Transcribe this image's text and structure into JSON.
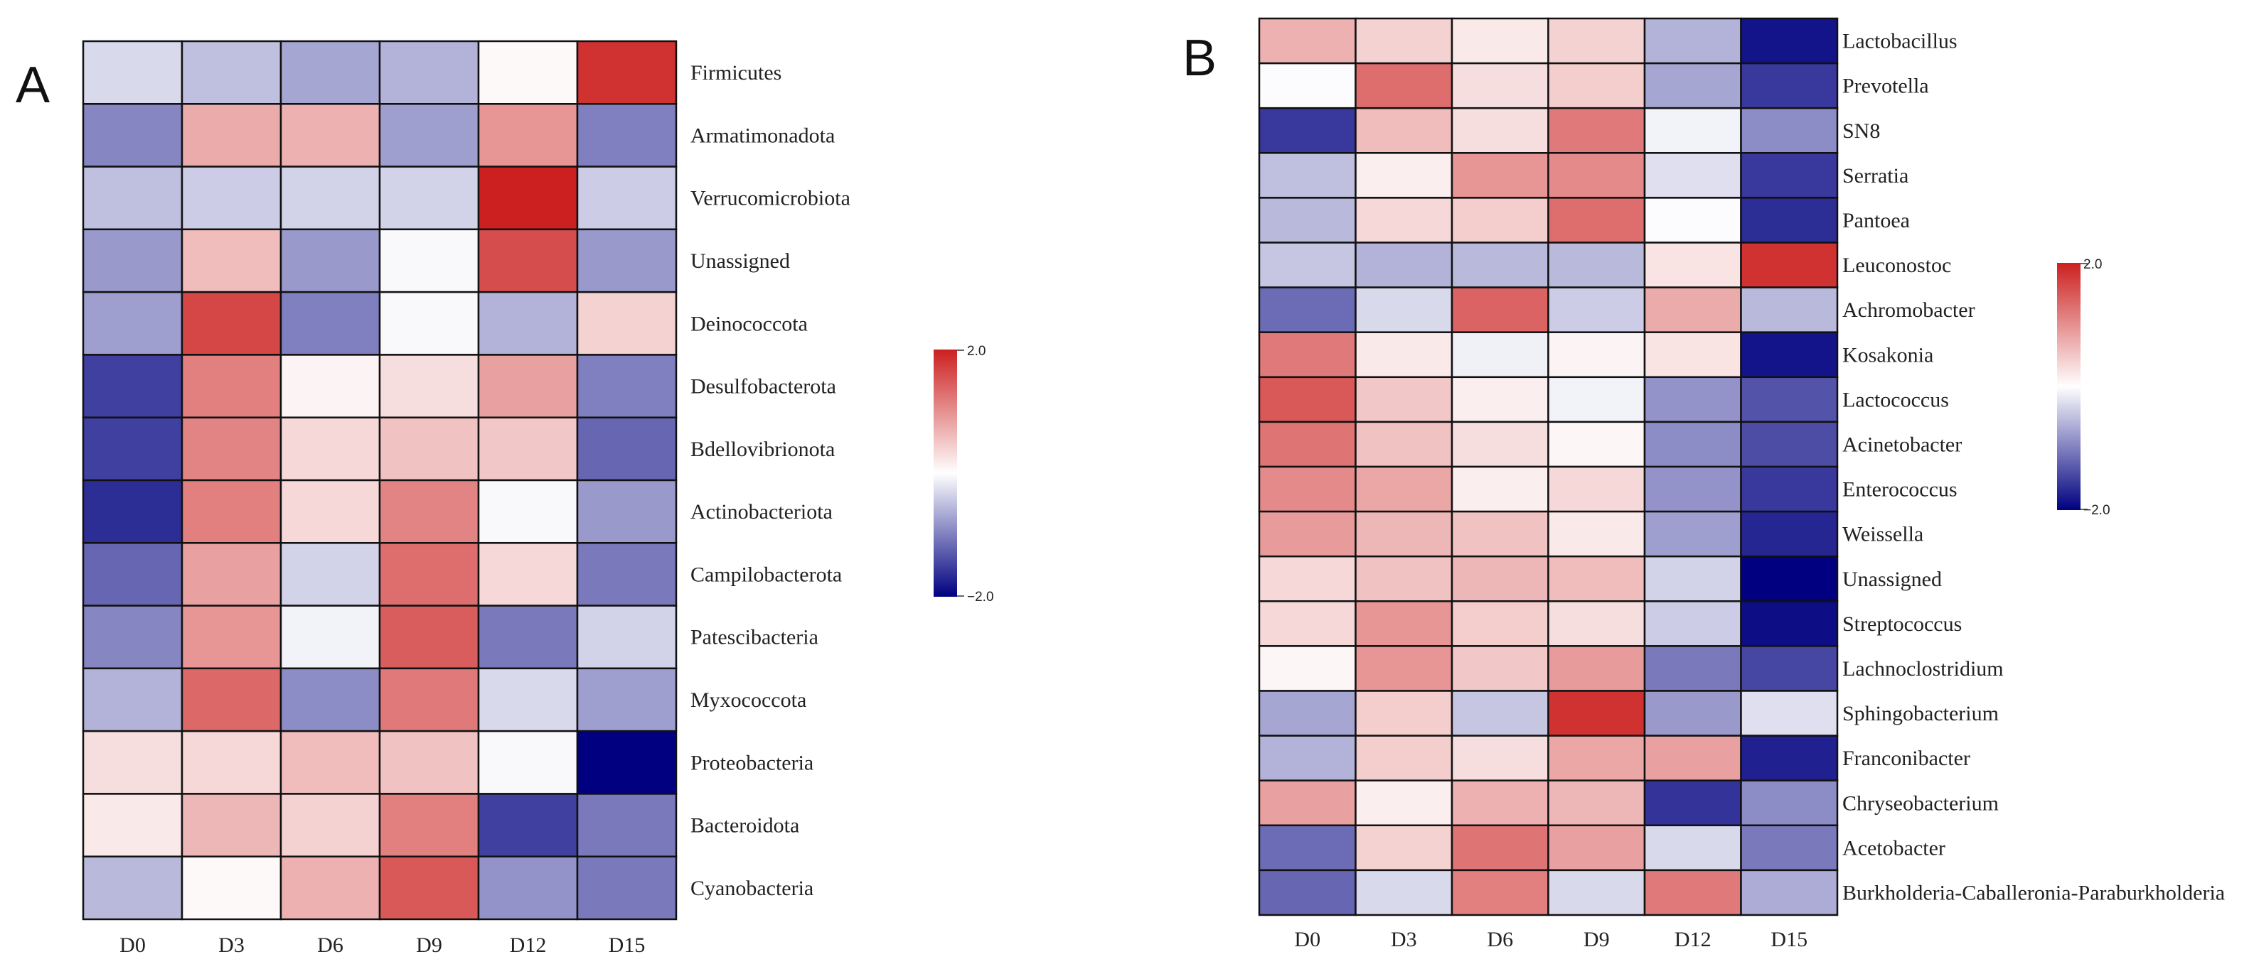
{
  "colors": {
    "low": "#000080",
    "mid": "#ffffff",
    "high": "#cc2020"
  },
  "chart_data": [
    {
      "type": "heatmap",
      "panel_label": "A",
      "columns": [
        "D0",
        "D3",
        "D6",
        "D9",
        "D12",
        "D15"
      ],
      "rows": [
        "Firmicutes",
        "Armatimonadota",
        "Verrucomicrobiota",
        "Unassigned",
        "Deinococcota",
        "Desulfobacterota",
        "Bdellovibrionota",
        "Actinobacteriota",
        "Campilobacterota",
        "Patescibacteria",
        "Myxococcota",
        "Proteobacteria",
        "Bacteroidota",
        "Cyanobacteria"
      ],
      "values": [
        [
          -0.3,
          -0.5,
          -0.7,
          -0.6,
          0.05,
          1.85
        ],
        [
          -0.95,
          0.75,
          0.7,
          -0.75,
          0.95,
          -1.0
        ],
        [
          -0.5,
          -0.4,
          -0.35,
          -0.35,
          2.0,
          -0.4
        ],
        [
          -0.8,
          0.6,
          -0.8,
          -0.05,
          1.6,
          -0.8
        ],
        [
          -0.75,
          1.65,
          -1.0,
          -0.05,
          -0.6,
          0.4
        ],
        [
          -1.5,
          1.15,
          0.1,
          0.3,
          0.85,
          -1.0
        ],
        [
          -1.5,
          1.1,
          0.35,
          0.55,
          0.5,
          -1.2
        ],
        [
          -1.65,
          1.15,
          0.35,
          1.1,
          -0.05,
          -0.8
        ],
        [
          -1.2,
          0.85,
          -0.35,
          1.3,
          0.35,
          -1.05
        ],
        [
          -0.95,
          0.95,
          -0.1,
          1.45,
          -1.05,
          -0.35
        ],
        [
          -0.6,
          1.35,
          -0.9,
          1.2,
          -0.3,
          -0.75
        ],
        [
          0.3,
          0.35,
          0.6,
          0.55,
          -0.05,
          -2.0
        ],
        [
          0.2,
          0.65,
          0.4,
          1.15,
          -1.5,
          -1.05
        ],
        [
          -0.55,
          0.05,
          0.7,
          1.5,
          -0.85,
          -1.05
        ]
      ],
      "legend": {
        "min": -2.0,
        "max": 2.0,
        "min_label": "−2.0",
        "max_label": "2.0"
      }
    },
    {
      "type": "heatmap",
      "panel_label": "B",
      "columns": [
        "D0",
        "D3",
        "D6",
        "D9",
        "D12",
        "D15"
      ],
      "rows": [
        "Lactobacillus",
        "Prevotella",
        "SN8",
        "Serratia",
        "Pantoea",
        "Leuconostoc",
        "Achromobacter",
        "Kosakonia",
        "Lactococcus",
        "Acinetobacter",
        "Enterococcus",
        "Weissella",
        "Unassigned",
        "Streptococcus",
        "Lachnoclostridium",
        "Sphingobacterium",
        "Franconibacter",
        "Chryseobacterium",
        "Acetobacter",
        "Burkholderia-Caballeronia-Paraburkholderia"
      ],
      "values": [
        [
          0.7,
          0.4,
          0.2,
          0.4,
          -0.6,
          -1.85
        ],
        [
          -0.02,
          1.3,
          0.3,
          0.45,
          -0.7,
          -1.55
        ],
        [
          -1.55,
          0.6,
          0.3,
          1.2,
          -0.1,
          -0.9
        ],
        [
          -0.5,
          0.15,
          0.95,
          1.05,
          -0.25,
          -1.55
        ],
        [
          -0.55,
          0.35,
          0.45,
          1.3,
          -0.02,
          -1.65
        ],
        [
          -0.45,
          -0.6,
          -0.55,
          -0.55,
          0.25,
          1.85
        ],
        [
          -1.15,
          -0.3,
          1.4,
          -0.4,
          0.75,
          -0.55
        ],
        [
          1.2,
          0.2,
          -0.12,
          0.1,
          0.25,
          -1.85
        ],
        [
          1.5,
          0.5,
          0.15,
          -0.1,
          -0.85,
          -1.35
        ],
        [
          1.25,
          0.55,
          0.3,
          0.08,
          -0.9,
          -1.4
        ],
        [
          1.05,
          0.8,
          0.15,
          0.35,
          -0.85,
          -1.55
        ],
        [
          0.9,
          0.65,
          0.55,
          0.2,
          -0.75,
          -1.7
        ],
        [
          0.35,
          0.55,
          0.65,
          0.6,
          -0.35,
          -2.0
        ],
        [
          0.35,
          0.95,
          0.45,
          0.3,
          -0.4,
          -1.9
        ],
        [
          0.08,
          0.95,
          0.5,
          0.9,
          -1.05,
          -1.45
        ],
        [
          -0.7,
          0.45,
          -0.45,
          1.85,
          -0.8,
          -0.25
        ],
        [
          -0.6,
          0.45,
          0.3,
          0.8,
          0.85,
          -1.75
        ],
        [
          0.85,
          0.15,
          0.7,
          0.65,
          -1.6,
          -0.9
        ],
        [
          -1.15,
          0.4,
          1.25,
          0.85,
          -0.3,
          -1.05
        ],
        [
          -1.2,
          -0.3,
          1.15,
          -0.3,
          1.2,
          -0.65
        ]
      ],
      "legend": {
        "min": -2.0,
        "max": 2.0,
        "min_label": "−2.0",
        "max_label": "2.0"
      }
    }
  ]
}
